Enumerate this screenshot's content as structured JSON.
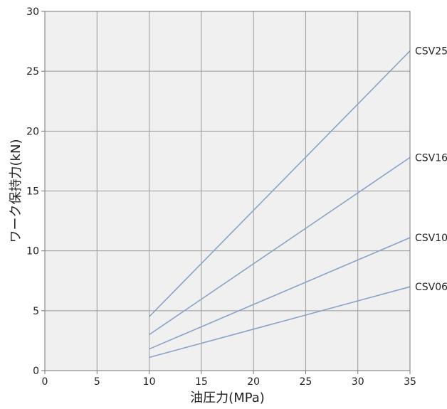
{
  "chart_data": {
    "type": "line",
    "title": "",
    "xlabel": "油圧力(MPa)",
    "ylabel": "ワーク保持力(kN)",
    "xlim": [
      0,
      35
    ],
    "ylim": [
      0,
      30
    ],
    "xticks": [
      0,
      5,
      10,
      15,
      20,
      25,
      30,
      35
    ],
    "yticks": [
      0,
      5,
      10,
      15,
      20,
      25,
      30
    ],
    "grid": true,
    "legend": "labels at line ends (right)",
    "background_color": "#f0f0f0",
    "grid_color": "#9a9a9a",
    "line_color": "#8aa2c8",
    "series": [
      {
        "name": "CSV25",
        "x": [
          10,
          35
        ],
        "y": [
          4.5,
          26.7
        ]
      },
      {
        "name": "CSV16",
        "x": [
          10,
          35
        ],
        "y": [
          3.0,
          17.8
        ]
      },
      {
        "name": "CSV10",
        "x": [
          10,
          35
        ],
        "y": [
          1.8,
          11.1
        ]
      },
      {
        "name": "CSV06",
        "x": [
          10,
          35
        ],
        "y": [
          1.1,
          7.0
        ]
      }
    ]
  }
}
